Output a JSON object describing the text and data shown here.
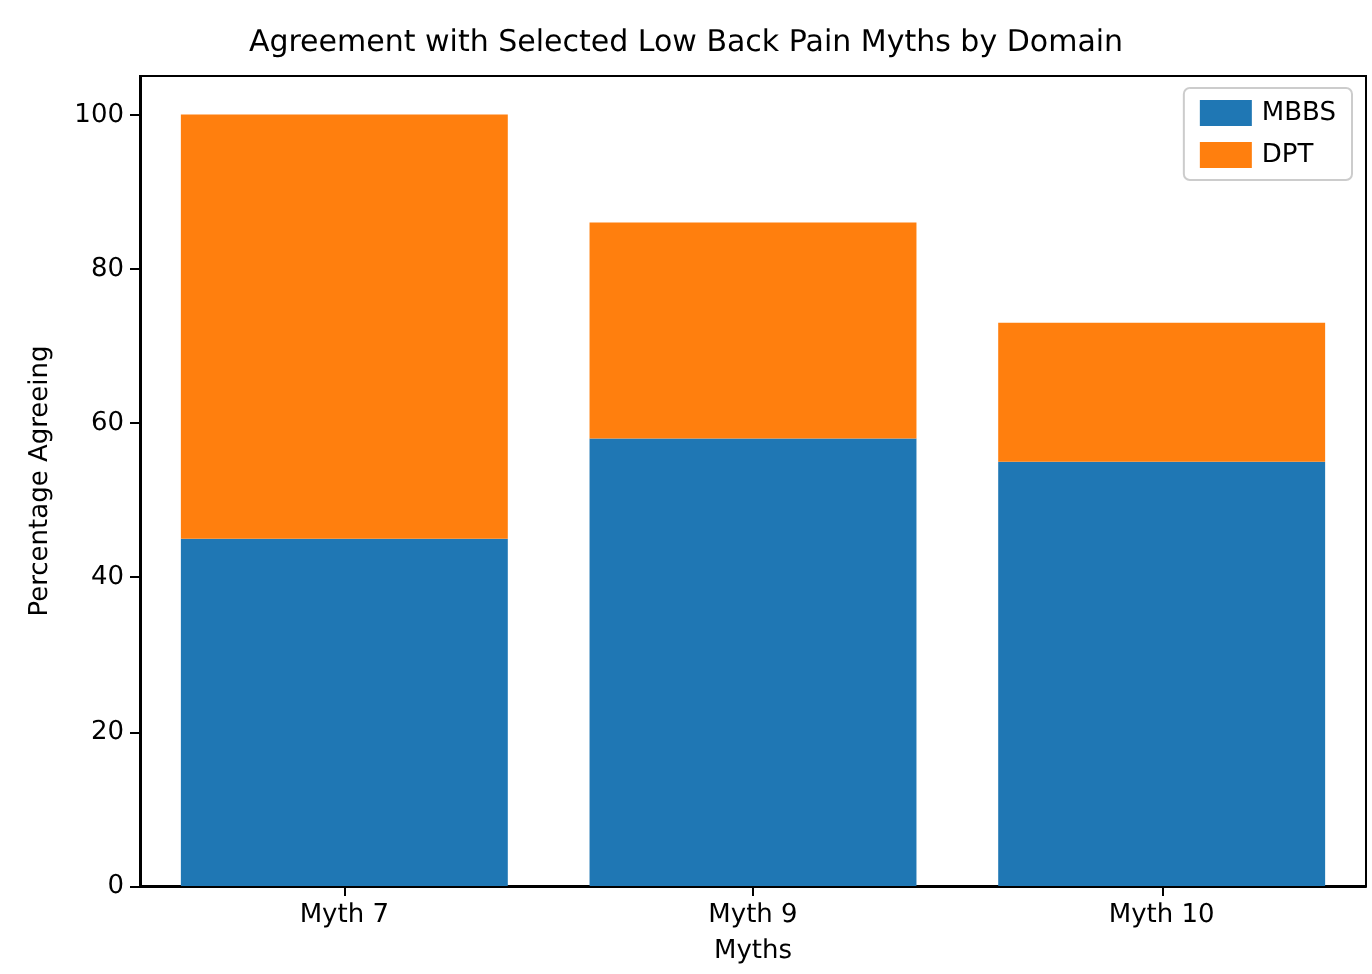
{
  "chart_data": {
    "type": "bar",
    "title": "Agreement with Selected Low Back Pain Myths by Domain",
    "xlabel": "Myths",
    "ylabel": "Percentage Agreeing",
    "categories": [
      "Myth 7",
      "Myth 9",
      "Myth 10"
    ],
    "series": [
      {
        "name": "MBBS",
        "color": "#1f77b4",
        "values": [
          45,
          58,
          55
        ]
      },
      {
        "name": "DPT",
        "color": "#ff7f0e",
        "values": [
          55,
          28,
          18
        ]
      }
    ],
    "stacked": true,
    "ylim": [
      0,
      105
    ],
    "yticks": [
      0,
      20,
      40,
      60,
      80,
      100
    ],
    "grid": false,
    "legend": "top right"
  }
}
